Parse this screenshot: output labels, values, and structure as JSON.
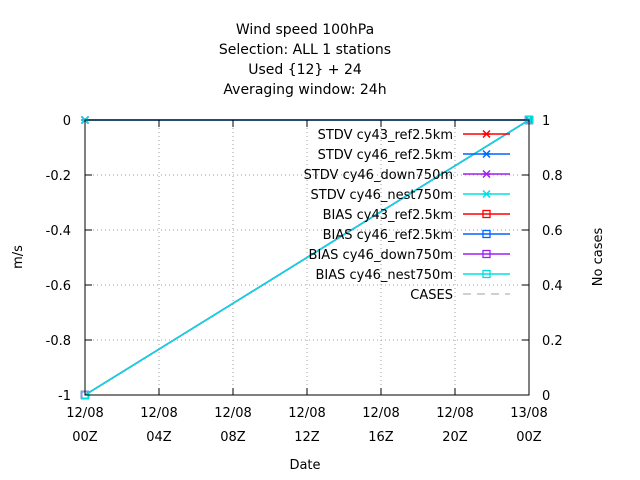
{
  "chart_data": {
    "type": "line",
    "title_lines": [
      "Wind speed 100hPa",
      "Selection: ALL      1 stations",
      "Used {12} + 24",
      "Averaging window: 24h"
    ],
    "xlabel": "Date",
    "ylabel": "m/s",
    "y2label": "No cases",
    "ylim": [
      -1,
      0
    ],
    "y2lim": [
      0,
      1
    ],
    "yticks": [
      "0",
      "-0.2",
      "-0.4",
      "-0.6",
      "-0.8",
      "-1"
    ],
    "y2ticks": [
      "1",
      "0.8",
      "0.6",
      "0.4",
      "0.2",
      "0"
    ],
    "xticks": [
      {
        "line1": "12/08",
        "line2": "00Z"
      },
      {
        "line1": "12/08",
        "line2": "04Z"
      },
      {
        "line1": "12/08",
        "line2": "08Z"
      },
      {
        "line1": "12/08",
        "line2": "12Z"
      },
      {
        "line1": "12/08",
        "line2": "16Z"
      },
      {
        "line1": "12/08",
        "line2": "20Z"
      },
      {
        "line1": "13/08",
        "line2": "00Z"
      }
    ],
    "grid": true,
    "legend_position": "top-right",
    "x_hours": [
      0,
      24
    ],
    "series": [
      {
        "name": "STDV cy43_ref2.5km",
        "color": "#ff0000",
        "marker": "x",
        "dash": false,
        "axis": "y",
        "values": [
          0,
          0
        ]
      },
      {
        "name": "STDV cy46_ref2.5km",
        "color": "#0066ff",
        "marker": "x",
        "dash": false,
        "axis": "y",
        "values": [
          0,
          0
        ]
      },
      {
        "name": "STDV cy46_down750m",
        "color": "#a020f0",
        "marker": "x",
        "dash": false,
        "axis": "y",
        "values": [
          0,
          0
        ]
      },
      {
        "name": "STDV cy46_nest750m",
        "color": "#00e0e0",
        "marker": "x",
        "dash": false,
        "axis": "y",
        "values": [
          0,
          0
        ]
      },
      {
        "name": "BIAS cy43_ref2.5km",
        "color": "#ff0000",
        "marker": "square",
        "dash": false,
        "axis": "y",
        "values": [
          -1,
          0
        ]
      },
      {
        "name": "BIAS cy46_ref2.5km",
        "color": "#0066ff",
        "marker": "square",
        "dash": false,
        "axis": "y",
        "values": [
          -1,
          0
        ]
      },
      {
        "name": "BIAS cy46_down750m",
        "color": "#a020f0",
        "marker": "square",
        "dash": false,
        "axis": "y",
        "values": [
          -1,
          0
        ]
      },
      {
        "name": "BIAS cy46_nest750m",
        "color": "#00e0e0",
        "marker": "square",
        "dash": false,
        "axis": "y",
        "values": [
          -1,
          0
        ]
      },
      {
        "name": "CASES",
        "color": "#a0a0a0",
        "marker": "none",
        "dash": true,
        "axis": "y2",
        "values": [
          1,
          1
        ]
      }
    ]
  }
}
